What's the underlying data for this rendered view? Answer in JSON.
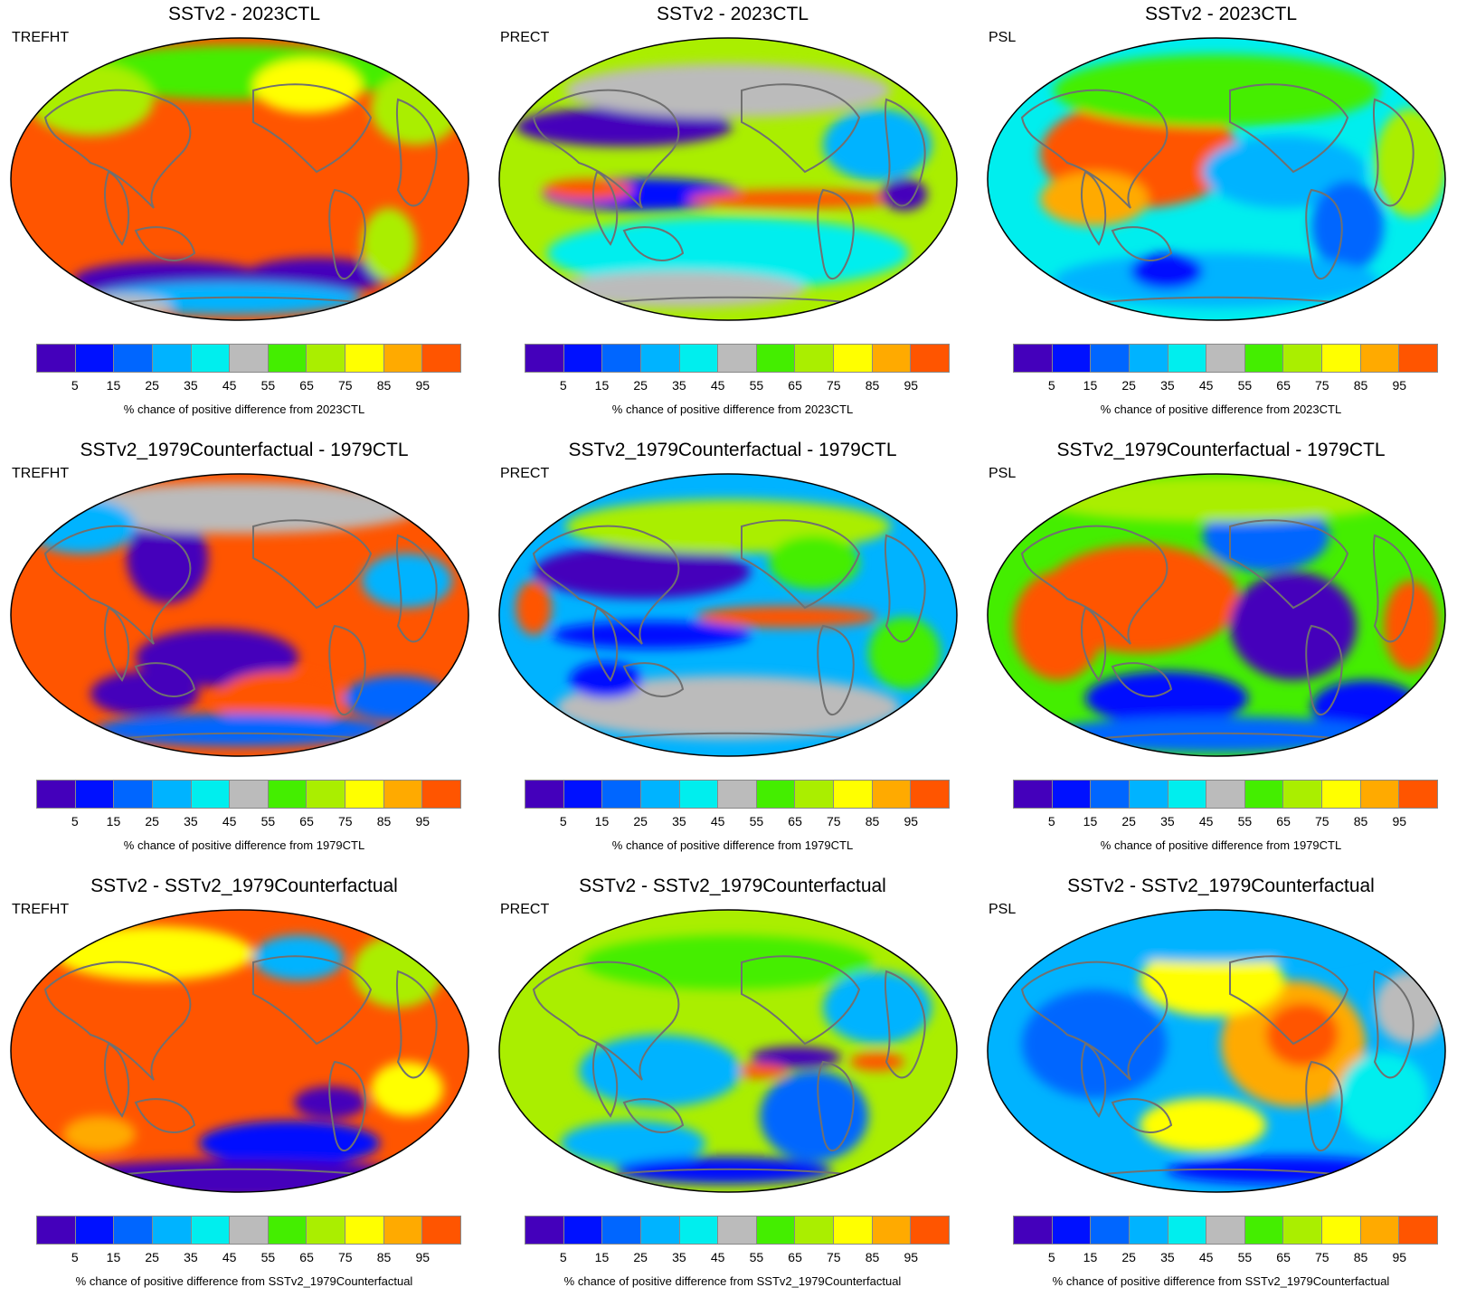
{
  "colorbar": {
    "colors": [
      "#4400bb",
      "#0011ff",
      "#0066ff",
      "#00b3ff",
      "#00eeee",
      "#bbbbbb",
      "#44ee00",
      "#aaee00",
      "#ffff00",
      "#ffaa00",
      "#ff5500"
    ],
    "tick_labels": [
      "5",
      "15",
      "25",
      "35",
      "45",
      "55",
      "65",
      "75",
      "85",
      "95"
    ]
  },
  "panels": [
    {
      "title": "SSTv2 - 2023CTL",
      "variable": "TREFHT",
      "caption": "% chance of positive difference from 2023CTL"
    },
    {
      "title": "SSTv2 - 2023CTL",
      "variable": "PRECT",
      "caption": "% chance of positive difference from 2023CTL"
    },
    {
      "title": "SSTv2 - 2023CTL",
      "variable": "PSL",
      "caption": "% chance of positive difference from 2023CTL"
    },
    {
      "title": "SSTv2_1979Counterfactual - 1979CTL",
      "variable": "TREFHT",
      "caption": "% chance of positive difference from 1979CTL"
    },
    {
      "title": "SSTv2_1979Counterfactual - 1979CTL",
      "variable": "PRECT",
      "caption": "% chance of positive difference from 1979CTL"
    },
    {
      "title": "SSTv2_1979Counterfactual - 1979CTL",
      "variable": "PSL",
      "caption": "% chance of positive difference from 1979CTL"
    },
    {
      "title": "SSTv2 - SSTv2_1979Counterfactual",
      "variable": "TREFHT",
      "caption": "% chance of positive difference from SSTv2_1979Counterfactual"
    },
    {
      "title": "SSTv2 - SSTv2_1979Counterfactual",
      "variable": "PRECT",
      "caption": "% chance of positive difference from SSTv2_1979Counterfactual"
    },
    {
      "title": "SSTv2 - SSTv2_1979Counterfactual",
      "variable": "PSL",
      "caption": "% chance of positive difference from SSTv2_1979Counterfactual"
    }
  ]
}
